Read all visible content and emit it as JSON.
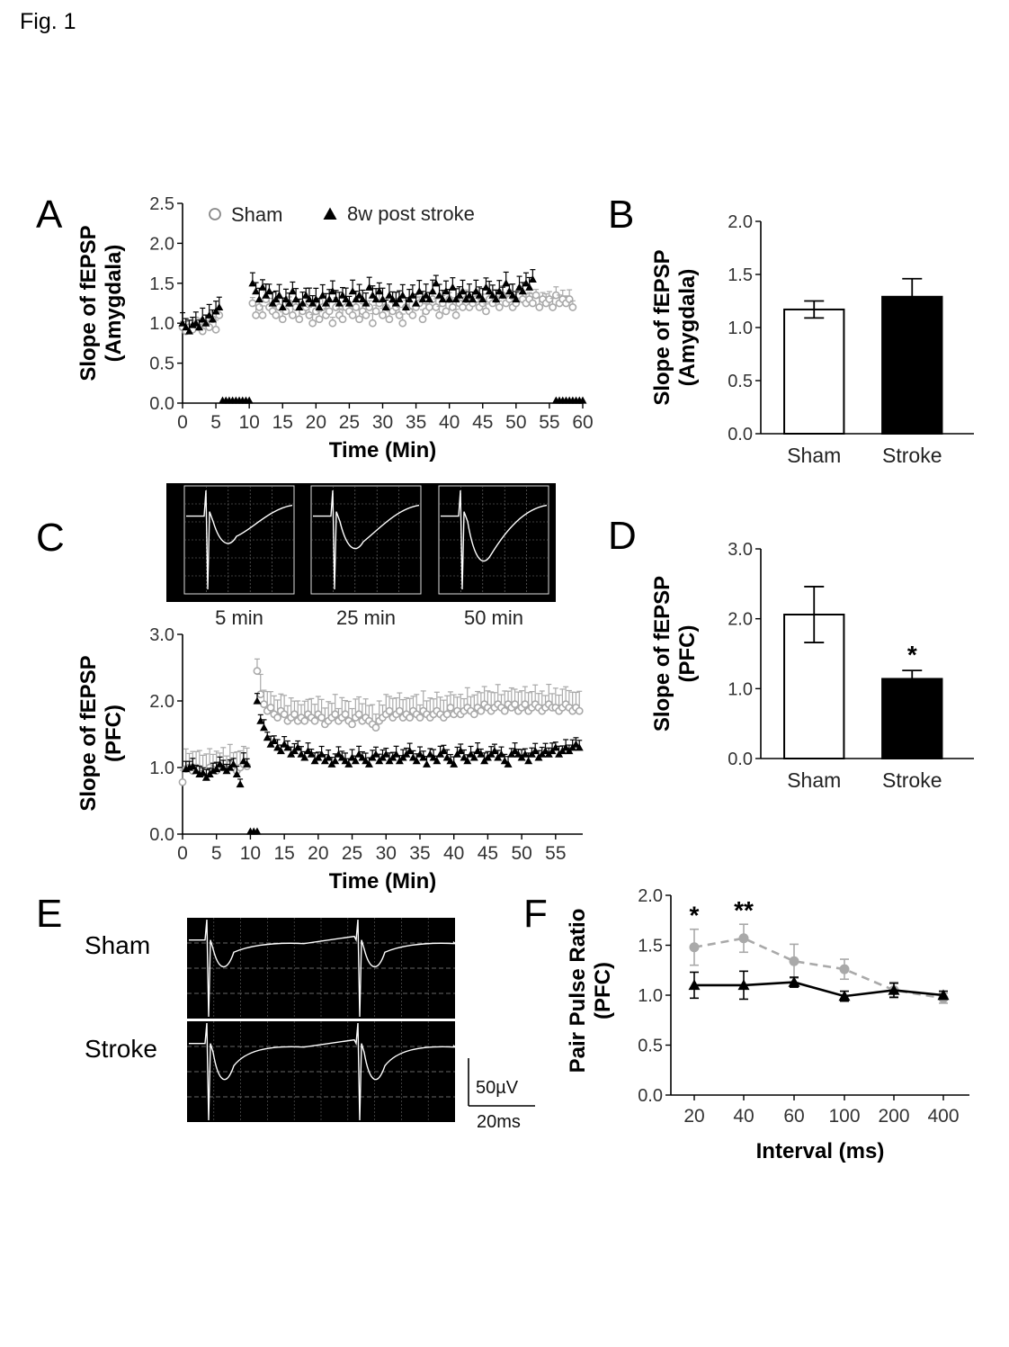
{
  "figure_label": "Fig. 1",
  "colors": {
    "sham": "#a9a9a9",
    "stroke": "#000000",
    "trace_bg": "#000000",
    "trace_line": "#ffffff"
  },
  "chart_data": [
    {
      "panel": "A",
      "type": "scatter",
      "xlabel": "Time (Min)",
      "ylabel_line1": "Slope of fEPSP",
      "ylabel_line2": "(Amygdala)",
      "xlim": [
        0,
        60
      ],
      "ylim": [
        0,
        2.5
      ],
      "xticks": [
        0,
        5,
        10,
        15,
        20,
        25,
        30,
        35,
        40,
        45,
        50,
        55,
        60
      ],
      "yticks": [
        0.0,
        0.5,
        1.0,
        1.5,
        2.0,
        2.5
      ],
      "ytick_labels": [
        "0.0",
        "0.5",
        "1.0",
        "1.5",
        "2.0",
        "2.5"
      ],
      "legend": [
        "Sham",
        "8w post stroke"
      ],
      "stim_markers": [
        [
          6,
          10
        ],
        [
          56,
          60
        ]
      ],
      "series": [
        {
          "name": "Sham",
          "marker": "circle",
          "segments": [
            {
              "x_start": 0,
              "x_step": 0.5,
              "values": [
                0.95,
                0.9,
                0.95,
                0.92,
                0.98,
                0.95,
                0.9,
                1.0,
                0.95,
                1.05,
                0.92,
                1.1
              ]
            },
            {
              "x_start": 10.5,
              "x_step": 0.5,
              "values": [
                1.25,
                1.1,
                1.2,
                1.1,
                1.3,
                1.2,
                1.15,
                1.1,
                1.2,
                1.05,
                1.15,
                1.25,
                1.1,
                1.2,
                1.05,
                1.15,
                1.2,
                1.1,
                1.0,
                1.15,
                1.05,
                1.2,
                1.1,
                1.15,
                1.0,
                1.2,
                1.1,
                1.05,
                1.2,
                1.15,
                1.1,
                1.2,
                1.05,
                1.15,
                1.1,
                1.2,
                1.0,
                1.15,
                1.25,
                1.1,
                1.2,
                1.05,
                1.15,
                1.2,
                1.1,
                1.0,
                1.2,
                1.15,
                1.1,
                1.2,
                1.25,
                1.05,
                1.15,
                1.2,
                1.3,
                1.2,
                1.1,
                1.25,
                1.15,
                1.3,
                1.2,
                1.1,
                1.25,
                1.2,
                1.3,
                1.2,
                1.25,
                1.3,
                1.2,
                1.25,
                1.15,
                1.3,
                1.25,
                1.3,
                1.2,
                1.35,
                1.25,
                1.3,
                1.2,
                1.25,
                1.35,
                1.3,
                1.25,
                1.3,
                1.25,
                1.35,
                1.2,
                1.3,
                1.25,
                1.3,
                1.2,
                1.35,
                1.25,
                1.3,
                1.25,
                1.3,
                1.2
              ]
            }
          ]
        },
        {
          "name": "8w post stroke",
          "marker": "triangle",
          "segments": [
            {
              "x_start": 0,
              "x_step": 0.5,
              "values": [
                1.0,
                0.95,
                0.9,
                0.98,
                1.0,
                0.95,
                1.05,
                1.0,
                1.1,
                1.05,
                1.15,
                1.2
              ]
            },
            {
              "x_start": 10.5,
              "x_step": 0.5,
              "values": [
                1.5,
                1.4,
                1.3,
                1.45,
                1.35,
                1.4,
                1.25,
                1.3,
                1.35,
                1.2,
                1.3,
                1.25,
                1.4,
                1.3,
                1.2,
                1.25,
                1.35,
                1.3,
                1.25,
                1.3,
                1.2,
                1.35,
                1.25,
                1.3,
                1.4,
                1.3,
                1.25,
                1.35,
                1.3,
                1.25,
                1.4,
                1.3,
                1.35,
                1.3,
                1.25,
                1.45,
                1.35,
                1.3,
                1.4,
                1.3,
                1.2,
                1.35,
                1.3,
                1.25,
                1.3,
                1.35,
                1.2,
                1.3,
                1.35,
                1.25,
                1.4,
                1.3,
                1.35,
                1.3,
                1.4,
                1.5,
                1.35,
                1.3,
                1.4,
                1.3,
                1.45,
                1.3,
                1.35,
                1.4,
                1.3,
                1.35,
                1.3,
                1.4,
                1.35,
                1.3,
                1.45,
                1.4,
                1.35,
                1.3,
                1.4,
                1.35,
                1.5,
                1.4,
                1.35,
                1.3,
                1.45,
                1.4,
                1.5,
                1.45,
                1.55
              ]
            }
          ]
        }
      ]
    },
    {
      "panel": "B",
      "type": "bar",
      "categories": [
        "Sham",
        "Stroke"
      ],
      "values": [
        1.17,
        1.29
      ],
      "errors": [
        0.08,
        0.17
      ],
      "ylabel_line1": "Slope of fEPSP",
      "ylabel_line2": "(Amygdala)",
      "ylim": [
        0,
        2.0
      ],
      "yticks": [
        0.0,
        0.5,
        1.0,
        1.5,
        2.0
      ],
      "ytick_labels": [
        "0.0",
        "0.5",
        "1.0",
        "1.5",
        "2.0"
      ],
      "significance": [
        "",
        ""
      ]
    },
    {
      "panel": "C",
      "type": "scatter",
      "xlabel": "Time (Min)",
      "ylabel_line1": "Slope of fEPSP",
      "ylabel_line2": "(PFC)",
      "xlim": [
        0,
        59
      ],
      "ylim": [
        0,
        3.0
      ],
      "xticks": [
        0,
        5,
        10,
        15,
        20,
        25,
        30,
        35,
        40,
        45,
        50,
        55
      ],
      "yticks": [
        0.0,
        1.0,
        2.0,
        3.0
      ],
      "ytick_labels": [
        "0.0",
        "1.0",
        "2.0",
        "3.0"
      ],
      "trace_labels": [
        "5 min",
        "25 min",
        "50 min"
      ],
      "stim_markers": [
        [
          10,
          11
        ]
      ],
      "series": [
        {
          "name": "Sham",
          "marker": "circle",
          "segments": [
            {
              "x_start": 0,
              "x_step": 0.5,
              "values": [
                0.78,
                0.98,
                1.0,
                0.95,
                1.0,
                0.98,
                0.92,
                0.95,
                1.0,
                0.97,
                0.95,
                1.02,
                1.0,
                0.98,
                1.05,
                1.0,
                0.95,
                1.0,
                1.05,
                1.02
              ]
            },
            {
              "x_start": 11,
              "x_step": 0.5,
              "values": [
                2.45,
                2.1,
                1.95,
                1.85,
                1.9,
                1.8,
                1.75,
                1.85,
                1.8,
                1.7,
                1.75,
                1.8,
                1.7,
                1.75,
                1.7,
                1.8,
                1.75,
                1.7,
                1.8,
                1.75,
                1.65,
                1.7,
                1.75,
                1.8,
                1.7,
                1.75,
                1.8,
                1.7,
                1.65,
                1.75,
                1.8,
                1.7,
                1.75,
                1.7,
                1.65,
                1.6,
                1.7,
                1.75,
                1.8,
                1.85,
                1.75,
                1.8,
                1.85,
                1.75,
                1.8,
                1.75,
                1.85,
                1.8,
                1.75,
                1.85,
                1.8,
                1.75,
                1.8,
                1.85,
                1.8,
                1.75,
                1.8,
                1.9,
                1.8,
                1.85,
                1.8,
                1.85,
                1.9,
                1.85,
                1.8,
                1.9,
                1.85,
                1.95,
                1.9,
                1.85,
                1.9,
                1.95,
                1.9,
                1.85,
                1.95,
                1.9,
                1.95,
                1.85,
                1.9,
                1.95,
                1.85,
                1.9,
                1.95,
                1.9,
                1.85,
                1.9,
                1.95,
                1.9,
                1.9,
                1.85,
                1.9,
                1.95,
                1.9,
                1.85,
                1.9,
                1.85
              ]
            }
          ]
        },
        {
          "name": "8w post stroke",
          "marker": "triangle",
          "segments": [
            {
              "x_start": 0.5,
              "x_step": 0.5,
              "values": [
                0.98,
                1.0,
                1.02,
                0.95,
                0.9,
                0.92,
                0.85,
                0.9,
                0.95,
                0.98,
                1.05,
                1.0,
                0.95,
                1.0,
                1.05,
                0.9,
                0.75,
                1.1,
                1.05
              ]
            },
            {
              "x_start": 11,
              "x_step": 0.5,
              "values": [
                2.0,
                1.7,
                1.6,
                1.45,
                1.35,
                1.4,
                1.3,
                1.25,
                1.35,
                1.3,
                1.2,
                1.25,
                1.3,
                1.2,
                1.15,
                1.25,
                1.2,
                1.1,
                1.15,
                1.2,
                1.1,
                1.15,
                1.05,
                1.1,
                1.2,
                1.15,
                1.1,
                1.05,
                1.15,
                1.1,
                1.2,
                1.15,
                1.1,
                1.05,
                1.15,
                1.2,
                1.1,
                1.15,
                1.2,
                1.1,
                1.15,
                1.2,
                1.1,
                1.15,
                1.2,
                1.25,
                1.15,
                1.1,
                1.2,
                1.15,
                1.05,
                1.2,
                1.15,
                1.1,
                1.2,
                1.25,
                1.15,
                1.1,
                1.05,
                1.2,
                1.25,
                1.15,
                1.1,
                1.2,
                1.15,
                1.25,
                1.2,
                1.1,
                1.15,
                1.2,
                1.25,
                1.15,
                1.2,
                1.1,
                1.05,
                1.2,
                1.25,
                1.2,
                1.15,
                1.2,
                1.1,
                1.2,
                1.25,
                1.15,
                1.2,
                1.25,
                1.2,
                1.25,
                1.3,
                1.2,
                1.25,
                1.3,
                1.25,
                1.3,
                1.35,
                1.3
              ]
            }
          ]
        }
      ]
    },
    {
      "panel": "D",
      "type": "bar",
      "categories": [
        "Sham",
        "Stroke"
      ],
      "values": [
        2.06,
        1.14
      ],
      "errors": [
        0.4,
        0.12
      ],
      "ylabel_line1": "Slope of fEPSP",
      "ylabel_line2": "(PFC)",
      "ylim": [
        0,
        3.0
      ],
      "yticks": [
        0.0,
        1.0,
        2.0,
        3.0
      ],
      "ytick_labels": [
        "0.0",
        "1.0",
        "2.0",
        "3.0"
      ],
      "significance": [
        "",
        "*"
      ]
    },
    {
      "panel": "E",
      "type": "traces",
      "row_labels": [
        "Sham",
        "Stroke"
      ],
      "scale_y": "50µV",
      "scale_x": "20ms"
    },
    {
      "panel": "F",
      "type": "line",
      "categories": [
        "20",
        "40",
        "60",
        "100",
        "200",
        "400"
      ],
      "xlabel": "Interval (ms)",
      "ylabel_line1": "Pair Pulse Ratio",
      "ylabel_line2": "(PFC)",
      "ylim": [
        0,
        2.0
      ],
      "yticks": [
        0.0,
        0.5,
        1.0,
        1.5,
        2.0
      ],
      "ytick_labels": [
        "0.0",
        "0.5",
        "1.0",
        "1.5",
        "2.0"
      ],
      "significance": [
        "*",
        "**",
        "",
        "",
        "",
        ""
      ],
      "series": [
        {
          "name": "Sham",
          "values": [
            1.48,
            1.57,
            1.34,
            1.26,
            1.05,
            0.97
          ],
          "errors": [
            0.18,
            0.14,
            0.17,
            0.1,
            0.08,
            0.05
          ]
        },
        {
          "name": "Stroke",
          "values": [
            1.1,
            1.1,
            1.13,
            0.99,
            1.05,
            1.0
          ],
          "errors": [
            0.13,
            0.14,
            0.05,
            0.05,
            0.07,
            0.04
          ]
        }
      ]
    }
  ]
}
